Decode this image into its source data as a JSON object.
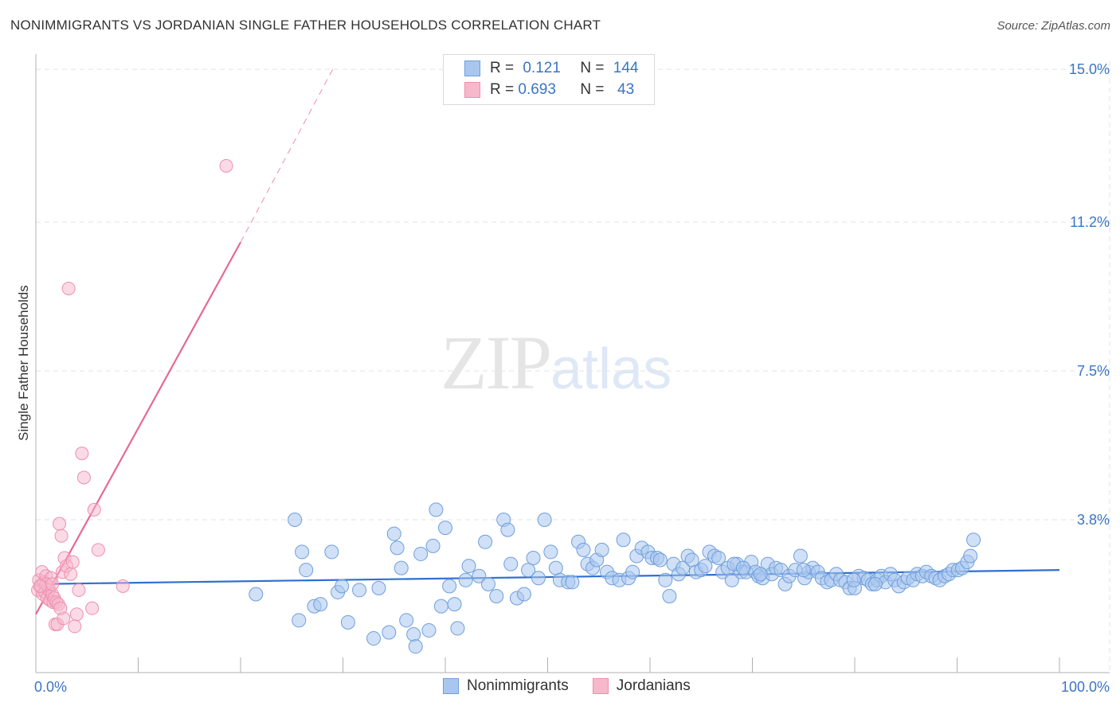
{
  "title": "NONIMMIGRANTS VS JORDANIAN SINGLE FATHER HOUSEHOLDS CORRELATION CHART",
  "source": "Source: ZipAtlas.com",
  "watermark": {
    "zip": "ZIP",
    "atlas": "atlas"
  },
  "legend": {
    "rows": [
      {
        "r_label": "R = ",
        "r_value": "0.121",
        "n_label": "N = ",
        "n_value": "144"
      },
      {
        "r_label": "R = ",
        "r_value": "0.693",
        "n_label": "N = ",
        "n_value": " 43"
      }
    ]
  },
  "colors": {
    "blue_fill": "#a9c7ee",
    "blue_stroke": "#6f9fdc",
    "blue_line": "#2f6fd0",
    "pink_fill": "#f6b8cb",
    "pink_stroke": "#ee8fae",
    "pink_line": "#e8698f",
    "grid": "#e3e3e3",
    "tick_text": "#3a75c4"
  },
  "chart_data": {
    "type": "scatter",
    "title": "NONIMMIGRANTS VS JORDANIAN SINGLE FATHER HOUSEHOLDS CORRELATION CHART",
    "xlabel": "",
    "ylabel": "Single Father Households",
    "xlim": [
      0,
      100
    ],
    "ylim": [
      0,
      15.5
    ],
    "x_tick_labels": [
      "0.0%",
      "100.0%"
    ],
    "y_ticks": [
      3.8,
      7.5,
      11.2,
      15.0
    ],
    "y_tick_labels": [
      "3.8%",
      "7.5%",
      "11.2%",
      "15.0%"
    ],
    "grid": true,
    "legend_position": "bottom-center",
    "series": [
      {
        "name": "Nonimmigrants",
        "R": 0.121,
        "N": 144,
        "trend": {
          "x": [
            0,
            100
          ],
          "y": [
            2.2,
            2.55
          ]
        },
        "points": [
          [
            21.5,
            1.95
          ],
          [
            25.3,
            3.8
          ],
          [
            25.7,
            1.3
          ],
          [
            26,
            3.0
          ],
          [
            26.4,
            2.55
          ],
          [
            27.2,
            1.65
          ],
          [
            27.8,
            1.7
          ],
          [
            28.9,
            3.0
          ],
          [
            29.5,
            2.0
          ],
          [
            29.9,
            2.15
          ],
          [
            30.5,
            1.25
          ],
          [
            31.6,
            2.05
          ],
          [
            33,
            0.85
          ],
          [
            33.5,
            2.1
          ],
          [
            34.5,
            1.0
          ],
          [
            35,
            3.45
          ],
          [
            35.3,
            3.1
          ],
          [
            35.7,
            2.6
          ],
          [
            36.2,
            1.3
          ],
          [
            36.9,
            0.95
          ],
          [
            37.1,
            0.65
          ],
          [
            37.6,
            2.95
          ],
          [
            38.4,
            1.05
          ],
          [
            38.8,
            3.15
          ],
          [
            39.1,
            4.05
          ],
          [
            39.6,
            1.65
          ],
          [
            40,
            3.6
          ],
          [
            40.4,
            2.15
          ],
          [
            40.9,
            1.7
          ],
          [
            41.2,
            1.1
          ],
          [
            42,
            2.3
          ],
          [
            42.3,
            2.65
          ],
          [
            43.3,
            2.4
          ],
          [
            43.9,
            3.25
          ],
          [
            44.2,
            2.2
          ],
          [
            45,
            1.9
          ],
          [
            45.7,
            3.8
          ],
          [
            46.1,
            3.55
          ],
          [
            46.4,
            2.7
          ],
          [
            47,
            1.85
          ],
          [
            47.7,
            1.95
          ],
          [
            48.1,
            2.55
          ],
          [
            48.6,
            2.85
          ],
          [
            49.1,
            2.35
          ],
          [
            49.7,
            3.8
          ],
          [
            50.3,
            3.0
          ],
          [
            50.8,
            2.6
          ],
          [
            51.2,
            2.3
          ],
          [
            52,
            2.25
          ],
          [
            52.4,
            2.25
          ],
          [
            53,
            3.25
          ],
          [
            53.5,
            3.05
          ],
          [
            53.9,
            2.7
          ],
          [
            54.4,
            2.6
          ],
          [
            54.8,
            2.8
          ],
          [
            55.3,
            3.05
          ],
          [
            55.8,
            2.5
          ],
          [
            56.3,
            2.35
          ],
          [
            57,
            2.3
          ],
          [
            57.4,
            3.3
          ],
          [
            57.9,
            2.35
          ],
          [
            58.3,
            2.5
          ],
          [
            58.7,
            2.9
          ],
          [
            59.2,
            3.1
          ],
          [
            59.8,
            3.0
          ],
          [
            60.2,
            2.85
          ],
          [
            60.7,
            2.85
          ],
          [
            61,
            2.8
          ],
          [
            61.5,
            2.3
          ],
          [
            61.9,
            1.9
          ],
          [
            62.3,
            2.7
          ],
          [
            62.8,
            2.45
          ],
          [
            63.2,
            2.6
          ],
          [
            63.7,
            2.9
          ],
          [
            64.1,
            2.8
          ],
          [
            64.5,
            2.5
          ],
          [
            65,
            2.55
          ],
          [
            65.4,
            2.65
          ],
          [
            65.8,
            3.0
          ],
          [
            66.3,
            2.9
          ],
          [
            66.7,
            2.85
          ],
          [
            67.1,
            2.5
          ],
          [
            67.6,
            2.6
          ],
          [
            68,
            2.3
          ],
          [
            68.5,
            2.7
          ],
          [
            68.9,
            2.5
          ],
          [
            69.4,
            2.5
          ],
          [
            69.9,
            2.75
          ],
          [
            70.3,
            2.5
          ],
          [
            70.6,
            2.4
          ],
          [
            71,
            2.35
          ],
          [
            71.5,
            2.7
          ],
          [
            71.9,
            2.45
          ],
          [
            72.3,
            2.6
          ],
          [
            72.8,
            2.55
          ],
          [
            73.2,
            2.2
          ],
          [
            73.6,
            2.4
          ],
          [
            74.2,
            2.55
          ],
          [
            74.7,
            2.9
          ],
          [
            75.1,
            2.35
          ],
          [
            75.5,
            2.5
          ],
          [
            75.9,
            2.6
          ],
          [
            76.4,
            2.5
          ],
          [
            76.8,
            2.35
          ],
          [
            77.3,
            2.25
          ],
          [
            77.7,
            2.3
          ],
          [
            78.2,
            2.45
          ],
          [
            78.6,
            2.3
          ],
          [
            79.1,
            2.25
          ],
          [
            79.5,
            2.1
          ],
          [
            80,
            2.1
          ],
          [
            80.4,
            2.4
          ],
          [
            80.9,
            2.35
          ],
          [
            81.3,
            2.3
          ],
          [
            81.7,
            2.2
          ],
          [
            82.2,
            2.3
          ],
          [
            82.6,
            2.4
          ],
          [
            83,
            2.25
          ],
          [
            83.5,
            2.45
          ],
          [
            83.9,
            2.3
          ],
          [
            84.3,
            2.15
          ],
          [
            84.8,
            2.25
          ],
          [
            85.2,
            2.35
          ],
          [
            85.7,
            2.3
          ],
          [
            86.1,
            2.45
          ],
          [
            86.6,
            2.4
          ],
          [
            87,
            2.5
          ],
          [
            87.5,
            2.4
          ],
          [
            87.9,
            2.35
          ],
          [
            88.3,
            2.3
          ],
          [
            88.8,
            2.4
          ],
          [
            89.2,
            2.45
          ],
          [
            89.6,
            2.55
          ],
          [
            90.1,
            2.55
          ],
          [
            90.5,
            2.6
          ],
          [
            91,
            2.75
          ],
          [
            91.3,
            2.9
          ],
          [
            91.6,
            3.3
          ],
          [
            68.2,
            2.7
          ],
          [
            69.1,
            2.6
          ],
          [
            70.8,
            2.45
          ],
          [
            75.0,
            2.55
          ],
          [
            79.9,
            2.3
          ],
          [
            82.0,
            2.2
          ]
        ]
      },
      {
        "name": "Jordanians",
        "R": 0.693,
        "N": 43,
        "trend": {
          "x": [
            0,
            20
          ],
          "y": [
            1.45,
            10.7
          ]
        },
        "trend_dashed": {
          "x": [
            20,
            29
          ],
          "y": [
            10.7,
            15.0
          ]
        },
        "points": [
          [
            0.2,
            2.05
          ],
          [
            0.3,
            2.3
          ],
          [
            0.5,
            2.15
          ],
          [
            0.6,
            2.5
          ],
          [
            0.7,
            1.95
          ],
          [
            0.8,
            2.25
          ],
          [
            0.9,
            2.0
          ],
          [
            1.0,
            2.4
          ],
          [
            1.1,
            1.85
          ],
          [
            1.2,
            2.15
          ],
          [
            1.3,
            2.05
          ],
          [
            1.4,
            1.8
          ],
          [
            1.5,
            2.35
          ],
          [
            1.6,
            1.95
          ],
          [
            1.7,
            1.75
          ],
          [
            1.8,
            1.85
          ],
          [
            1.9,
            1.2
          ],
          [
            2.0,
            1.75
          ],
          [
            2.1,
            1.2
          ],
          [
            2.2,
            1.7
          ],
          [
            2.3,
            3.7
          ],
          [
            2.5,
            3.4
          ],
          [
            2.6,
            2.5
          ],
          [
            2.7,
            1.35
          ],
          [
            2.8,
            2.85
          ],
          [
            3.0,
            2.65
          ],
          [
            3.2,
            9.55
          ],
          [
            3.4,
            2.45
          ],
          [
            3.6,
            2.75
          ],
          [
            3.8,
            1.15
          ],
          [
            4.0,
            1.45
          ],
          [
            4.2,
            2.05
          ],
          [
            4.5,
            5.45
          ],
          [
            4.7,
            4.85
          ],
          [
            5.5,
            1.6
          ],
          [
            5.7,
            4.05
          ],
          [
            6.1,
            3.05
          ],
          [
            8.5,
            2.15
          ],
          [
            18.6,
            12.6
          ],
          [
            1.0,
            2.2
          ],
          [
            0.4,
            2.15
          ],
          [
            1.6,
            2.2
          ],
          [
            2.4,
            1.6
          ]
        ]
      }
    ]
  }
}
